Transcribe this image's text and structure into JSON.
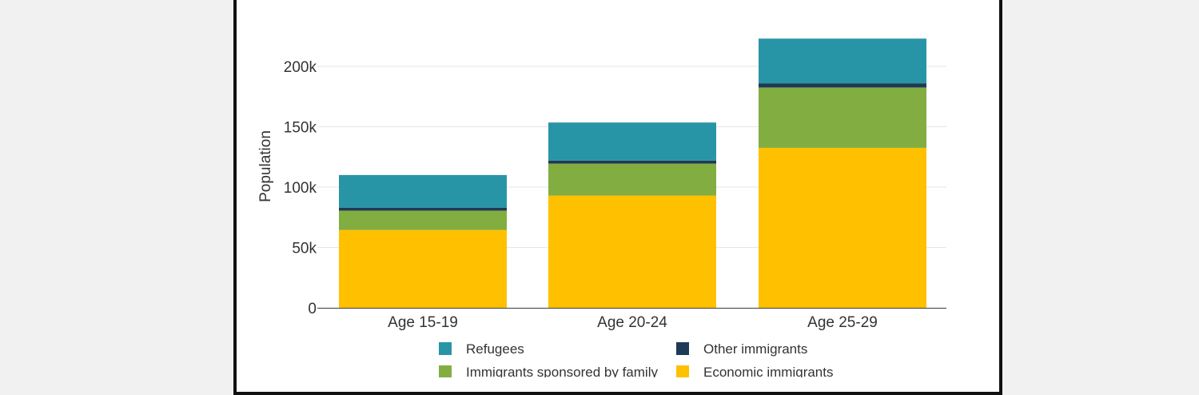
{
  "chart_data": {
    "type": "bar",
    "stacked": true,
    "title": "",
    "xlabel": "",
    "ylabel": "Population",
    "ylim": [
      0,
      225000
    ],
    "yticks": [
      0,
      50000,
      100000,
      150000,
      200000
    ],
    "ytick_labels": [
      "0",
      "50k",
      "100k",
      "150k",
      "200k"
    ],
    "grid": true,
    "legend_position": "bottom",
    "categories": [
      "Age 15-19",
      "Age 20-24",
      "Age 25-29"
    ],
    "series": [
      {
        "name": "Economic immigrants",
        "color": "#ffc000",
        "values": [
          64500,
          93000,
          132500
        ]
      },
      {
        "name": "Immigrants sponsored by family",
        "color": "#82ad41",
        "values": [
          16000,
          26500,
          50000
        ]
      },
      {
        "name": "Other immigrants",
        "color": "#1f3a56",
        "values": [
          2500,
          2500,
          3500
        ]
      },
      {
        "name": "Refugees",
        "color": "#2895a6",
        "values": [
          27000,
          31500,
          37000
        ]
      }
    ],
    "legend_order": [
      "Refugees",
      "Other immigrants",
      "Immigrants sponsored by family",
      "Economic immigrants"
    ]
  }
}
